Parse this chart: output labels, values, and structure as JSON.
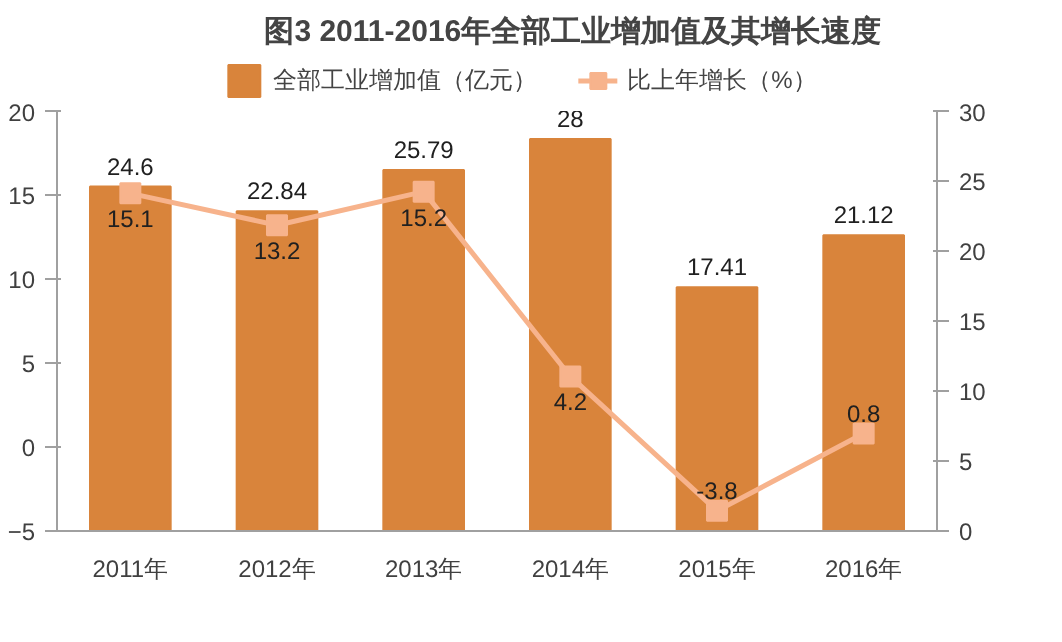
{
  "chart_data": {
    "type": "bar",
    "title": "图3  2011-2016年全部工业增加值及其增长速度",
    "categories": [
      "2011年",
      "2012年",
      "2013年",
      "2014年",
      "2015年",
      "2016年"
    ],
    "series": [
      {
        "name": "全部工业增加值（亿元）",
        "axis": "y2",
        "color": "#d9843b",
        "values": [
          24.6,
          22.84,
          25.79,
          28,
          17.41,
          21.12
        ]
      },
      {
        "name": "比上年增长（%）",
        "type": "line",
        "axis": "y",
        "color": "#f7b38c",
        "marker": "square",
        "values": [
          15.1,
          13.2,
          15.2,
          4.2,
          -3.8,
          0.8
        ]
      }
    ],
    "ylim": [
      -5,
      20
    ],
    "yticks": [
      -5,
      0,
      5,
      10,
      15,
      20
    ],
    "y2lim": [
      0,
      30
    ],
    "y2ticks": [
      0,
      5,
      10,
      15,
      20,
      25,
      30
    ],
    "data_labels": true,
    "legend": "top",
    "grid": false
  }
}
